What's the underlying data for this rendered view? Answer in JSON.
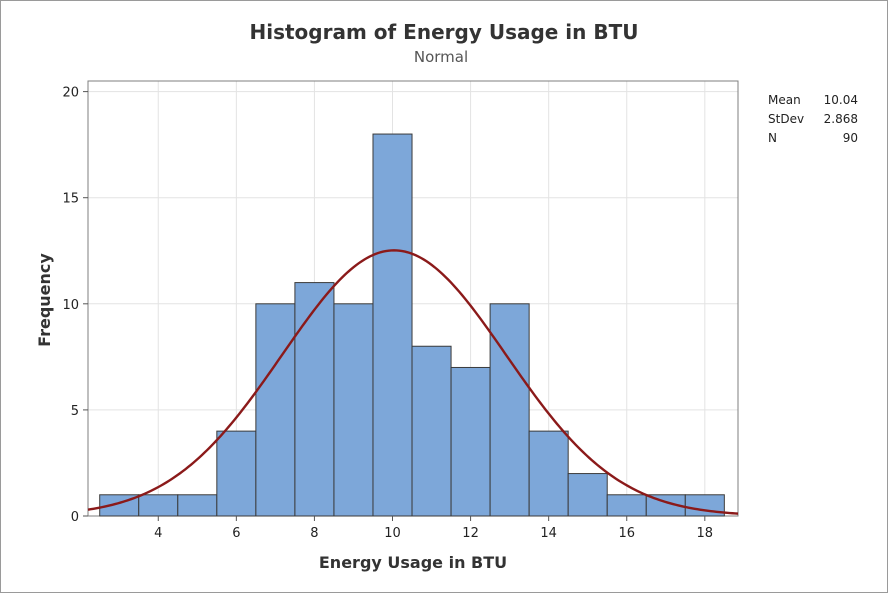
{
  "chart_data": {
    "type": "bar",
    "title": "Histogram of Energy Usage in BTU",
    "subtitle": "Normal",
    "xlabel": "Energy Usage in BTU",
    "ylabel": "Frequency",
    "xlim": [
      2.2,
      18.85
    ],
    "ylim": [
      0,
      20.5
    ],
    "xticks": [
      4,
      6,
      8,
      10,
      12,
      14,
      16,
      18
    ],
    "yticks": [
      0,
      5,
      10,
      15,
      20
    ],
    "grid": true,
    "bin_width": 1,
    "bins": [
      {
        "center": 3,
        "count": 1
      },
      {
        "center": 4,
        "count": 1
      },
      {
        "center": 5,
        "count": 1
      },
      {
        "center": 6,
        "count": 4
      },
      {
        "center": 7,
        "count": 10
      },
      {
        "center": 8,
        "count": 11
      },
      {
        "center": 9,
        "count": 10
      },
      {
        "center": 10,
        "count": 18
      },
      {
        "center": 11,
        "count": 8
      },
      {
        "center": 12,
        "count": 7
      },
      {
        "center": 13,
        "count": 10
      },
      {
        "center": 14,
        "count": 4
      },
      {
        "center": 15,
        "count": 2
      },
      {
        "center": 16,
        "count": 1
      },
      {
        "center": 17,
        "count": 1
      },
      {
        "center": 18,
        "count": 1
      }
    ],
    "fit": {
      "distribution": "Normal",
      "mean": 10.04,
      "stdev": 2.868,
      "n": 90
    },
    "stats": [
      {
        "label": "Mean",
        "value": "10.04"
      },
      {
        "label": "StDev",
        "value": "2.868"
      },
      {
        "label": "N",
        "value": "90"
      }
    ],
    "colors": {
      "bar_fill": "#7da7d9",
      "bar_stroke": "#3a3a3a",
      "curve": "#8b1a1a",
      "grid": "#e3e3e3",
      "axis": "#7f7f7f"
    }
  }
}
